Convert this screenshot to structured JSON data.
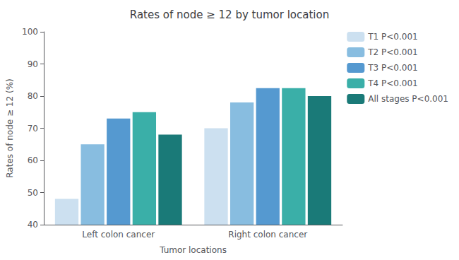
{
  "chart_data": {
    "type": "bar",
    "title": "Rates of node ≥ 12 by tumor location",
    "xlabel": "Tumor locations",
    "ylabel": "Rates of node ≥ 12 (%)",
    "categories": [
      "Left colon cancer",
      "Right colon cancer"
    ],
    "series": [
      {
        "name": "T1 P<0.001",
        "color": "#cce0f0",
        "values": [
          48,
          70
        ]
      },
      {
        "name": "T2 P<0.001",
        "color": "#88bde0",
        "values": [
          65,
          78
        ]
      },
      {
        "name": "T3 P<0.001",
        "color": "#5599d0",
        "values": [
          73,
          82.5
        ]
      },
      {
        "name": "T4 P<0.001",
        "color": "#3aafa8",
        "values": [
          75,
          82.5
        ]
      },
      {
        "name": "All stages P<0.001",
        "color": "#1a7a78",
        "values": [
          68,
          80
        ]
      }
    ],
    "ylim": [
      40,
      100
    ],
    "yticks": [
      40,
      50,
      60,
      70,
      80,
      90,
      100
    ],
    "grid": false,
    "legend": "right"
  }
}
